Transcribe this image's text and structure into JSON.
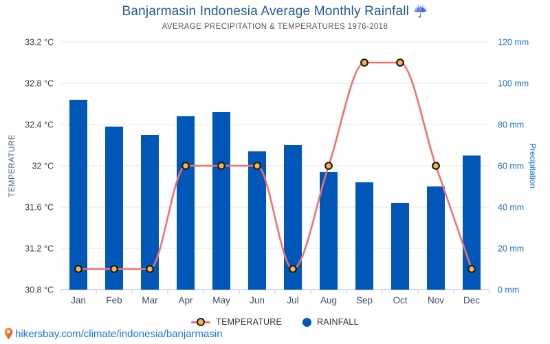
{
  "header": {
    "title": "Banjarmasin Indonesia Average Monthly Rainfall",
    "title_icon": "☔",
    "subtitle": "AVERAGE PRECIPITATION & TEMPERATURES 1976-2018"
  },
  "chart_data": {
    "type": "bar",
    "title": "Banjarmasin Indonesia Average Monthly Rainfall",
    "subtitle": "AVERAGE PRECIPITATION & TEMPERATURES 1976-2018",
    "categories": [
      "Jan",
      "Feb",
      "Mar",
      "Apr",
      "May",
      "Jun",
      "Jul",
      "Aug",
      "Sep",
      "Oct",
      "Nov",
      "Dec"
    ],
    "series": [
      {
        "name": "RAINFALL",
        "type": "bar",
        "axis": "right",
        "unit": "mm",
        "values": [
          92,
          79,
          75,
          84,
          86,
          67,
          70,
          57,
          52,
          42,
          50,
          65
        ]
      },
      {
        "name": "TEMPERATURE",
        "type": "line",
        "axis": "left",
        "unit": "°C",
        "values": [
          31,
          31,
          31,
          32,
          32,
          32,
          31,
          32,
          33,
          33,
          32,
          31
        ]
      }
    ],
    "left_axis": {
      "title": "TEMPERATURE",
      "min": 30.8,
      "max": 33.2,
      "step": 0.4,
      "tick_labels": [
        "33.2 °C",
        "32.8 °C",
        "32.4 °C",
        "32 °C",
        "31.6 °C",
        "31.2 °C",
        "30.8 °C"
      ]
    },
    "right_axis": {
      "title": "Precipitation",
      "min": 0,
      "max": 120,
      "step": 20,
      "tick_labels": [
        "120 mm",
        "100 mm",
        "80 mm",
        "60 mm",
        "40 mm",
        "20 mm",
        "0 mm"
      ]
    },
    "grid": true,
    "legend_position": "bottom"
  },
  "legend": {
    "temperature_label": "TEMPERATURE",
    "rainfall_label": "RAINFALL"
  },
  "footer": {
    "link_text": "hikersbay.com/climate/indonesia/banjarmasin"
  },
  "icons": {
    "title_weather_icon": "☔",
    "footer_icon": "location-pin"
  },
  "colors": {
    "bar_blue": "#0057b7",
    "line_red": "#f4706e",
    "marker_fill": "#f7b34a",
    "marker_stroke": "#1a1a1a",
    "title_blue": "#215996",
    "subtitle_gray": "#575757",
    "grid_gray": "#e7e7e7",
    "axis_line": "#c7d4e8",
    "left_tick_text": "#3d3d3d",
    "right_tick_text": "#1a6fd2",
    "left_axis_title": "#4e6584",
    "right_axis_title": "#1a73e8",
    "month_text": "#3e4a5e",
    "legend_text": "#333333",
    "link_blue": "#1a73e8",
    "pin_top": "#f9a23c",
    "pin_bottom": "#ee3d24"
  }
}
